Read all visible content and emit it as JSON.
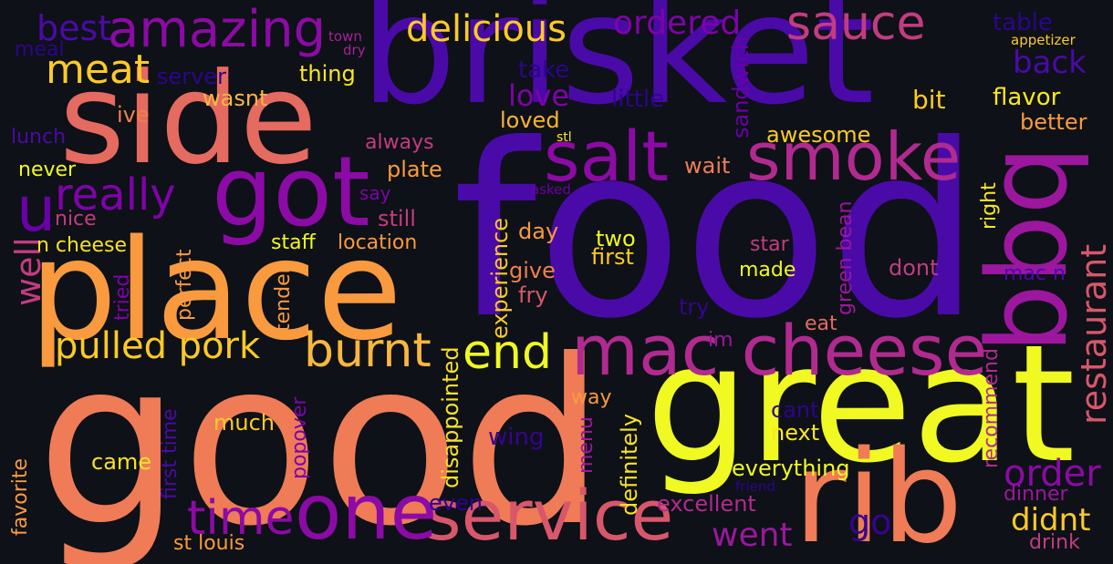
{
  "words": [
    {
      "text": "food",
      "color": "#4a0aa8"
    },
    {
      "text": "good",
      "color": "#ef7c56"
    },
    {
      "text": "brisket",
      "color": "#4a0aa8"
    },
    {
      "text": "place",
      "color": "#f99a3e"
    },
    {
      "text": "side",
      "color": "#e56a60"
    },
    {
      "text": "great",
      "color": "#f0f921"
    },
    {
      "text": "rib",
      "color": "#ef7c56"
    },
    {
      "text": "bbq",
      "color": "#9c179e"
    },
    {
      "text": "got",
      "color": "#8c0aa5"
    },
    {
      "text": "service",
      "color": "#d8576b"
    },
    {
      "text": "mac cheese",
      "color": "#b12a90"
    },
    {
      "text": "one",
      "color": "#8c0aa5"
    },
    {
      "text": "salt",
      "color": "#8c0aa5"
    },
    {
      "text": "smoke",
      "color": "#b12a90"
    },
    {
      "text": "amazing",
      "color": "#8c0aa5"
    },
    {
      "text": "sauce",
      "color": "#c23c81"
    },
    {
      "text": "burnt",
      "color": "#f9b73f"
    },
    {
      "text": "end",
      "color": "#f0f921"
    },
    {
      "text": "pulled pork",
      "color": "#fdca26"
    },
    {
      "text": "time",
      "color": "#8c0aa5"
    },
    {
      "text": "really",
      "color": "#7e03a8"
    },
    {
      "text": "meat",
      "color": "#fdca26"
    },
    {
      "text": "best",
      "color": "#4a0aa8"
    },
    {
      "text": "u",
      "color": "#6a00a8"
    },
    {
      "text": "delicious",
      "color": "#fdca26"
    },
    {
      "text": "ordered",
      "color": "#7e03a8"
    },
    {
      "text": "restaurant",
      "color": "#d8576b"
    },
    {
      "text": "order",
      "color": "#8c0aa5"
    },
    {
      "text": "went",
      "color": "#9c179e"
    },
    {
      "text": "didnt",
      "color": "#fdca26"
    },
    {
      "text": "go",
      "color": "#35048f"
    },
    {
      "text": "well",
      "color": "#c23c81"
    },
    {
      "text": "back",
      "color": "#4a0aa8"
    },
    {
      "text": "table",
      "color": "#2c058e"
    },
    {
      "text": "appetizer",
      "color": "#fdca26"
    },
    {
      "text": "love",
      "color": "#7e03a8"
    },
    {
      "text": "take",
      "color": "#2c058e"
    },
    {
      "text": "little",
      "color": "#2c058e"
    },
    {
      "text": "loved",
      "color": "#fdb42f"
    },
    {
      "text": "sandwich",
      "color": "#6a00a8"
    },
    {
      "text": "bit",
      "color": "#fdca26"
    },
    {
      "text": "flavor",
      "color": "#f9e721"
    },
    {
      "text": "better",
      "color": "#f99a3e"
    },
    {
      "text": "awesome",
      "color": "#fdca26"
    },
    {
      "text": "wait",
      "color": "#ef7c56"
    },
    {
      "text": "server",
      "color": "#2c058e"
    },
    {
      "text": "wasnt",
      "color": "#f9b73f"
    },
    {
      "text": "thing",
      "color": "#f9e721"
    },
    {
      "text": "meal",
      "color": "#2c058e"
    },
    {
      "text": "town",
      "color": "#a72197"
    },
    {
      "text": "dry",
      "color": "#a72197"
    },
    {
      "text": "ive",
      "color": "#f07f4f"
    },
    {
      "text": "lunch",
      "color": "#4a0aa8"
    },
    {
      "text": "never",
      "color": "#f0f921"
    },
    {
      "text": "always",
      "color": "#c23c81"
    },
    {
      "text": "plate",
      "color": "#f99a3e"
    },
    {
      "text": "stl",
      "color": "#f9e721"
    },
    {
      "text": "asked",
      "color": "#6a00a8"
    },
    {
      "text": "say",
      "color": "#7e03a8"
    },
    {
      "text": "nice",
      "color": "#c23c81"
    },
    {
      "text": "still",
      "color": "#c23c81"
    },
    {
      "text": "n cheese",
      "color": "#f7e225"
    },
    {
      "text": "staff",
      "color": "#f0f921"
    },
    {
      "text": "location",
      "color": "#f99a3e"
    },
    {
      "text": "day",
      "color": "#f99a3e"
    },
    {
      "text": "two",
      "color": "#f0f921"
    },
    {
      "text": "first",
      "color": "#fdca26"
    },
    {
      "text": "give",
      "color": "#f07f4f"
    },
    {
      "text": "fry",
      "color": "#d8576b"
    },
    {
      "text": "experience",
      "color": "#fdca26"
    },
    {
      "text": "star",
      "color": "#c23c81"
    },
    {
      "text": "made",
      "color": "#f0f921"
    },
    {
      "text": "dont",
      "color": "#c23c81"
    },
    {
      "text": "right",
      "color": "#f9e721"
    },
    {
      "text": "green bean",
      "color": "#9c179e"
    },
    {
      "text": "mac n",
      "color": "#4a0aa8"
    },
    {
      "text": "try",
      "color": "#35048f"
    },
    {
      "text": "eat",
      "color": "#e56a60"
    },
    {
      "text": "im",
      "color": "#9c179e"
    },
    {
      "text": "tried",
      "color": "#7e03a8"
    },
    {
      "text": "perfect",
      "color": "#f99a3e"
    },
    {
      "text": "tender",
      "color": "#f99a3e"
    },
    {
      "text": "way",
      "color": "#f99a3e"
    },
    {
      "text": "much",
      "color": "#fdca26"
    },
    {
      "text": "cant",
      "color": "#2c058e"
    },
    {
      "text": "next",
      "color": "#f9e721"
    },
    {
      "text": "wing",
      "color": "#35048f"
    },
    {
      "text": "menu",
      "color": "#9c179e"
    },
    {
      "text": "disappointed",
      "color": "#f7e225"
    },
    {
      "text": "definitely",
      "color": "#f7e225"
    },
    {
      "text": "everything",
      "color": "#f0f921"
    },
    {
      "text": "excellent",
      "color": "#b12a90"
    },
    {
      "text": "even",
      "color": "#2c058e"
    },
    {
      "text": "friend",
      "color": "#2c058e"
    },
    {
      "text": "dinner",
      "color": "#9c179e"
    },
    {
      "text": "drink",
      "color": "#c23c81"
    },
    {
      "text": "recommend",
      "color": "#b12a90"
    },
    {
      "text": "came",
      "color": "#f7e225"
    },
    {
      "text": "st louis",
      "color": "#f99a3e"
    },
    {
      "text": "favorite",
      "color": "#f99a3e"
    },
    {
      "text": "first time",
      "color": "#4a0aa8"
    },
    {
      "text": "popover",
      "color": "#7e03a8"
    }
  ]
}
